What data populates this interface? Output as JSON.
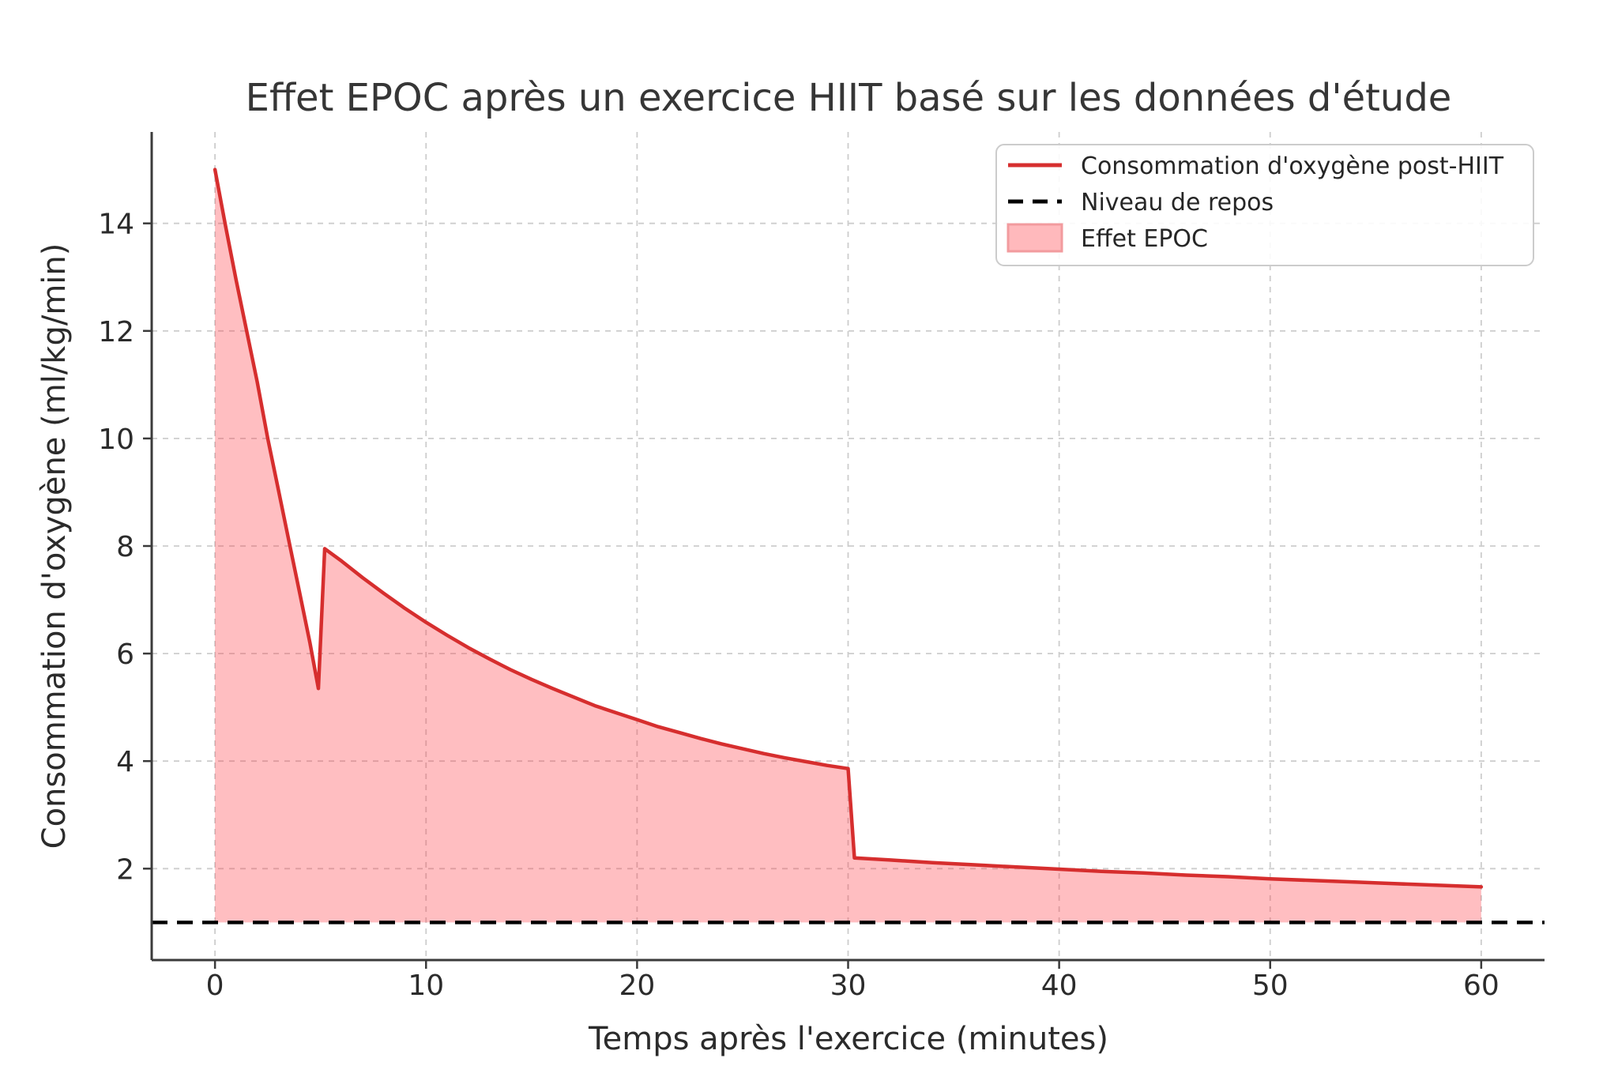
{
  "chart_data": {
    "type": "area",
    "title": "Effet EPOC après un exercice HIIT basé sur les données d'étude",
    "xlabel": "Temps après l'exercice (minutes)",
    "ylabel": "Consommation d'oxygène (ml/kg/min)",
    "xlim": [
      -3,
      63
    ],
    "ylim": [
      0.3,
      15.7
    ],
    "xticks": [
      0,
      10,
      20,
      30,
      40,
      50,
      60
    ],
    "yticks": [
      2,
      4,
      6,
      8,
      10,
      12,
      14
    ],
    "grid": true,
    "grid_style": "dashed",
    "grid_color": "#cdcdcd",
    "legend": {
      "position": "upper right",
      "entries": [
        {
          "label": "Consommation d'oxygène post-HIIT",
          "type": "line",
          "color": "#d62e2e"
        },
        {
          "label": "Niveau de repos",
          "type": "dashed-line",
          "color": "#000000"
        },
        {
          "label": "Effet EPOC",
          "type": "patch",
          "color": "#ffb9bc",
          "edge_color": "#f29b9e"
        }
      ]
    },
    "series": [
      {
        "name": "Consommation d'oxygène post-HIIT",
        "color": "#d62e2e",
        "points": [
          [
            0,
            15.0
          ],
          [
            0.5,
            13.95
          ],
          [
            1,
            12.95
          ],
          [
            1.5,
            12.0
          ],
          [
            2,
            11.05
          ],
          [
            2.5,
            10.0
          ],
          [
            3,
            9.05
          ],
          [
            3.5,
            8.1
          ],
          [
            4,
            7.15
          ],
          [
            4.5,
            6.2
          ],
          [
            4.9,
            5.35
          ],
          [
            5.2,
            7.95
          ],
          [
            6,
            7.72
          ],
          [
            7,
            7.41
          ],
          [
            8,
            7.12
          ],
          [
            9,
            6.84
          ],
          [
            10,
            6.58
          ],
          [
            11,
            6.34
          ],
          [
            12,
            6.11
          ],
          [
            13,
            5.9
          ],
          [
            14,
            5.7
          ],
          [
            15,
            5.52
          ],
          [
            16,
            5.35
          ],
          [
            17,
            5.19
          ],
          [
            18,
            5.03
          ],
          [
            19,
            4.9
          ],
          [
            20,
            4.77
          ],
          [
            21,
            4.64
          ],
          [
            22,
            4.53
          ],
          [
            23,
            4.42
          ],
          [
            24,
            4.32
          ],
          [
            25,
            4.23
          ],
          [
            26,
            4.14
          ],
          [
            27,
            4.06
          ],
          [
            28,
            3.99
          ],
          [
            29,
            3.92
          ],
          [
            30,
            3.86
          ],
          [
            30.3,
            2.2
          ],
          [
            32,
            2.16
          ],
          [
            34,
            2.11
          ],
          [
            36,
            2.07
          ],
          [
            38,
            2.03
          ],
          [
            40,
            1.99
          ],
          [
            42,
            1.95
          ],
          [
            44,
            1.92
          ],
          [
            46,
            1.88
          ],
          [
            48,
            1.85
          ],
          [
            50,
            1.81
          ],
          [
            52,
            1.78
          ],
          [
            54,
            1.75
          ],
          [
            56,
            1.72
          ],
          [
            58,
            1.69
          ],
          [
            60,
            1.66
          ]
        ]
      }
    ],
    "baseline": {
      "name": "Niveau de repos",
      "value": 1.0,
      "color": "#000000",
      "style": "dashed"
    },
    "fill": {
      "name": "Effet EPOC",
      "between": "curve and rest level",
      "color": "rgba(255,59,66,0.33)"
    }
  }
}
